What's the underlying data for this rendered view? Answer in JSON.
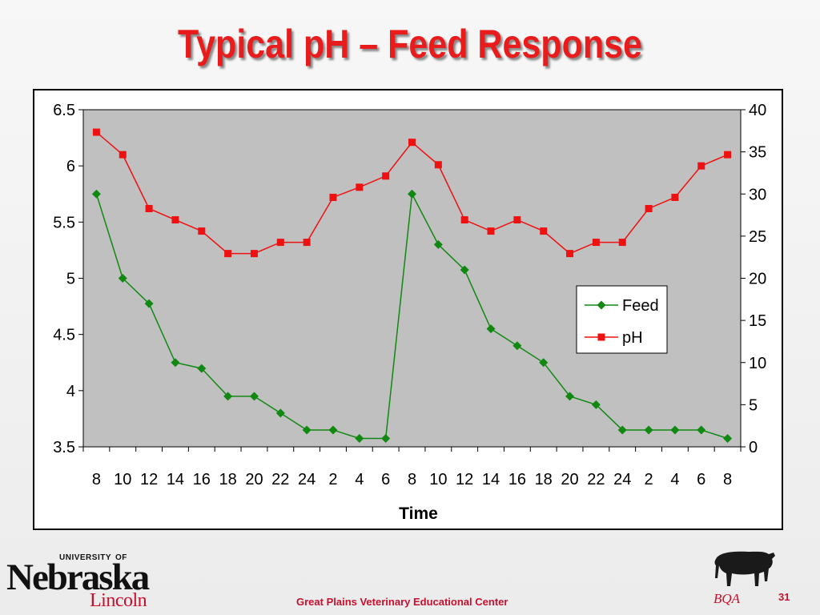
{
  "slide": {
    "title": "Typical pH – Feed Response",
    "footer": "Great Plains Veterinary Educational Center",
    "page_number": "31"
  },
  "logo": {
    "top_small_left": "UNIVERSITY",
    "top_small_right": "OF",
    "main": "Nebraska",
    "sub": "Lincoln"
  },
  "bqa": {
    "label": "BQA"
  },
  "colors": {
    "title": "#e81c1c",
    "plot_bg": "#c0c0c0",
    "feed": "#118811",
    "ph": "#ee1111",
    "footer": "#c8102e"
  },
  "chart_data": {
    "type": "line",
    "xlabel": "Time",
    "categories": [
      "8",
      "10",
      "12",
      "14",
      "16",
      "18",
      "20",
      "22",
      "24",
      "2",
      "4",
      "6",
      "8",
      "10",
      "12",
      "14",
      "16",
      "18",
      "20",
      "22",
      "24",
      "2",
      "4",
      "6",
      "8"
    ],
    "y_left": {
      "min": 3.5,
      "max": 6.5,
      "ticks": [
        "3.5",
        "4",
        "4.5",
        "5",
        "5.5",
        "6",
        "6.5"
      ]
    },
    "y_right": {
      "min": 0,
      "max": 40,
      "ticks": [
        "0",
        "5",
        "10",
        "15",
        "20",
        "25",
        "30",
        "35",
        "40"
      ]
    },
    "grid": false,
    "legend": "right-middle",
    "series": [
      {
        "name": "Feed",
        "axis": "right",
        "marker": "diamond",
        "values": [
          30,
          20,
          17,
          10,
          9.3,
          6,
          6,
          4,
          2,
          2,
          1,
          1,
          30,
          24,
          21,
          14,
          12,
          10,
          6,
          5,
          2,
          2,
          2,
          2,
          1
        ]
      },
      {
        "name": "pH",
        "axis": "left",
        "marker": "square",
        "values": [
          6.3,
          6.1,
          5.62,
          5.52,
          5.42,
          5.22,
          5.22,
          5.32,
          5.32,
          5.72,
          5.81,
          5.91,
          6.21,
          6.01,
          5.52,
          5.42,
          5.52,
          5.42,
          5.22,
          5.32,
          5.32,
          5.62,
          5.72,
          6.0,
          6.1
        ]
      }
    ]
  }
}
